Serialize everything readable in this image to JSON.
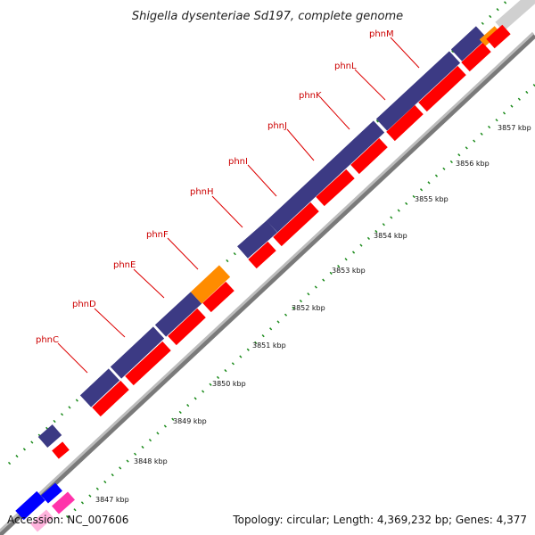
{
  "title": "Shigella dysenteriae Sd197, complete genome",
  "accession": "Accession: NC_007606",
  "topology": "Topology: circular; Length: 4,369,232 bp; Genes: 4,377",
  "colors": {
    "backbone": "#9a9a9a",
    "backbone_light": "#cfcfcf",
    "gene_fwd": "#3c3a84",
    "gene_rev": "#ff0000",
    "gene_orange": "#ff8c00",
    "gene_blue": "#0000ff",
    "gene_pink": "#ff33aa",
    "tick": "#1a8a1a",
    "label_line": "#dd0000"
  },
  "genes": [
    {
      "label": "phnC",
      "name": "gene-label-phnc"
    },
    {
      "label": "phnD",
      "name": "gene-label-phnd"
    },
    {
      "label": "phnE",
      "name": "gene-label-phne"
    },
    {
      "label": "phnF",
      "name": "gene-label-phnf"
    },
    {
      "label": "phnH",
      "name": "gene-label-phnh"
    },
    {
      "label": "phnI",
      "name": "gene-label-phni"
    },
    {
      "label": "phnJ",
      "name": "gene-label-phnj"
    },
    {
      "label": "phnK",
      "name": "gene-label-phnk"
    },
    {
      "label": "phnL",
      "name": "gene-label-phnl"
    },
    {
      "label": "phnM",
      "name": "gene-label-phnm"
    }
  ],
  "kbp_ticks": [
    {
      "label": "3847 kbp",
      "name": "kbp-label-3847"
    },
    {
      "label": "3848 kbp",
      "name": "kbp-label-3848"
    },
    {
      "label": "3849 kbp",
      "name": "kbp-label-3849"
    },
    {
      "label": "3850 kbp",
      "name": "kbp-label-3850"
    },
    {
      "label": "3851 kbp",
      "name": "kbp-label-3851"
    },
    {
      "label": "3852 kbp",
      "name": "kbp-label-3852"
    },
    {
      "label": "3853 kbp",
      "name": "kbp-label-3853"
    },
    {
      "label": "3854 kbp",
      "name": "kbp-label-3854"
    },
    {
      "label": "3855 kbp",
      "name": "kbp-label-3855"
    },
    {
      "label": "3856 kbp",
      "name": "kbp-label-3856"
    },
    {
      "label": "3857 kbp",
      "name": "kbp-label-3857"
    }
  ]
}
